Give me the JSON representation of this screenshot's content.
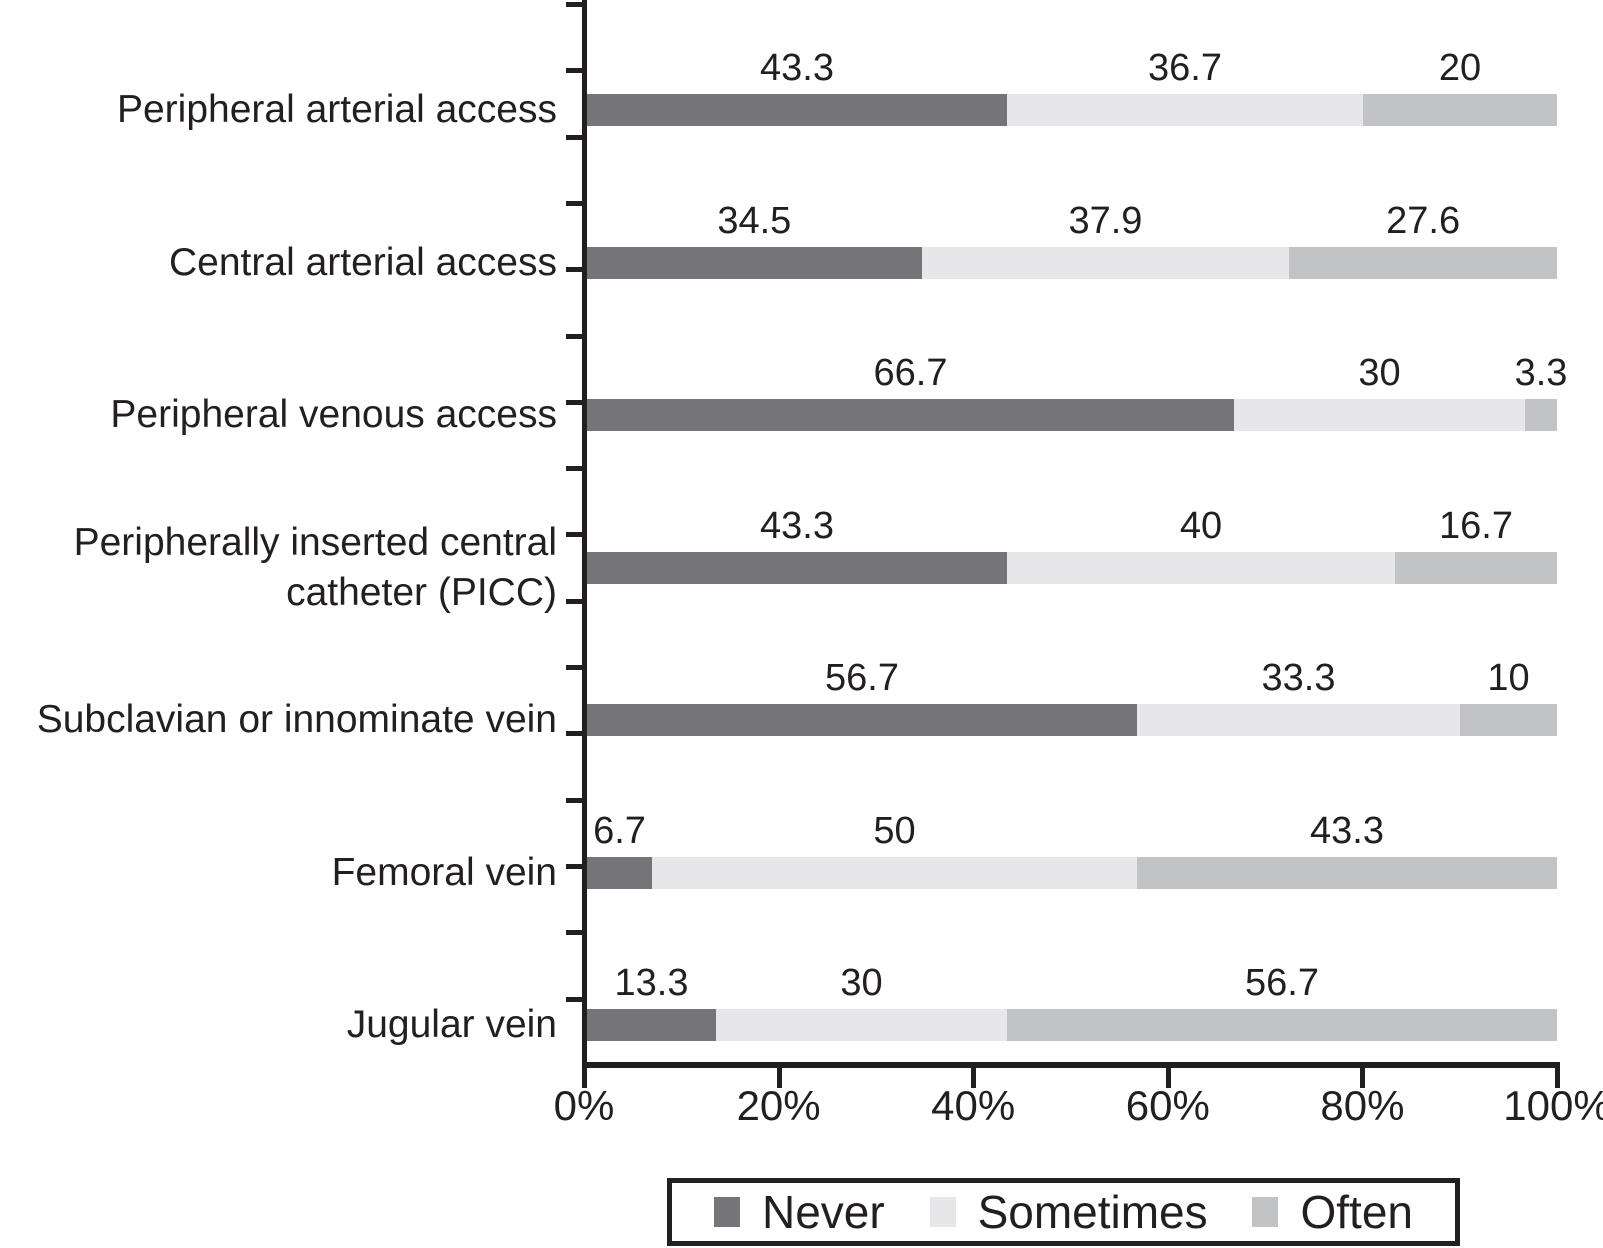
{
  "chart_data": {
    "type": "bar",
    "orientation": "horizontal",
    "stacked": true,
    "title": "",
    "xlabel": "",
    "ylabel": "",
    "categories": [
      "Peripheral arterial access",
      "Central arterial access",
      "Peripheral venous access",
      "Peripherally inserted central\ncatheter (PICC)",
      "Subclavian or innominate vein",
      "Femoral vein",
      "Jugular vein"
    ],
    "series": [
      {
        "name": "Never",
        "color": "#757579",
        "values": [
          43.3,
          34.5,
          66.7,
          43.3,
          56.7,
          6.7,
          13.3
        ],
        "value_labels": [
          "43.3",
          "34.5",
          "66.7",
          "43.3",
          "56.7",
          "6.7",
          "13.3"
        ]
      },
      {
        "name": "Sometimes",
        "color": "#e7e7e9",
        "values": [
          36.7,
          37.9,
          30,
          40,
          33.3,
          50,
          30
        ],
        "value_labels": [
          "36.7",
          "37.9",
          "30",
          "40",
          "33.3",
          "50",
          "30"
        ]
      },
      {
        "name": "Often",
        "color": "#c2c3c5",
        "values": [
          20,
          27.6,
          3.3,
          16.7,
          10,
          43.3,
          56.7
        ],
        "value_labels": [
          "20",
          "27.6",
          "3.3",
          "16.7",
          "10",
          "43.3",
          "56.7"
        ]
      }
    ],
    "x_ticks": [
      "0%",
      "20%",
      "40%",
      "60%",
      "80%",
      "100%"
    ],
    "xlim": [
      0,
      100
    ],
    "grid": false,
    "legend_position": "bottom",
    "data_labels": "above-segments"
  },
  "colors": {
    "axis": "#231f20",
    "text": "#231f20",
    "background": "#ffffff",
    "legend_border": "#231f20"
  }
}
